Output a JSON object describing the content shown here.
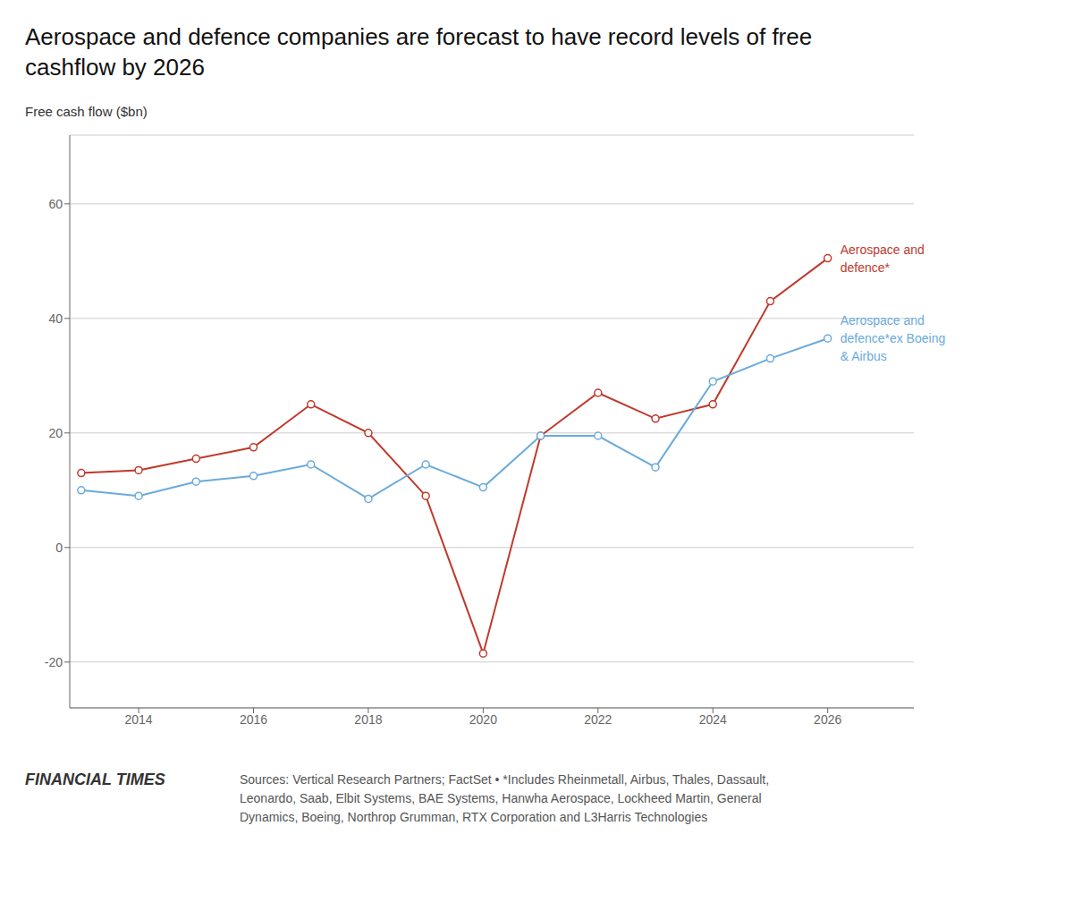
{
  "chart_data": {
    "type": "line",
    "title": "Aerospace and defence companies are forecast to have record levels of free\ncashflow by 2026",
    "y_label": "Free cash flow ($bn)",
    "x": [
      2013,
      2014,
      2015,
      2016,
      2017,
      2018,
      2019,
      2020,
      2021,
      2022,
      2023,
      2024,
      2025,
      2026
    ],
    "series": [
      {
        "name": "Aerospace and\ndefence*",
        "color": "#c0392b",
        "marker": "circle",
        "values": [
          13.0,
          13.5,
          15.5,
          17.5,
          25.0,
          20.0,
          9.0,
          -18.5,
          19.5,
          27.0,
          22.5,
          25.0,
          43.0,
          50.5
        ]
      },
      {
        "name": "Aerospace and\ndefence*ex Boeing\n& Airbus",
        "color": "#6aaadb",
        "marker": "circle",
        "values": [
          10.0,
          9.0,
          11.5,
          12.5,
          14.5,
          8.5,
          14.5,
          10.5,
          19.5,
          19.5,
          14.0,
          29.0,
          33.0,
          36.5
        ]
      }
    ],
    "xlim": [
      2012.8,
      2027.5
    ],
    "xticks": [
      2014,
      2016,
      2018,
      2020,
      2022,
      2024,
      2026
    ],
    "ylim": [
      -28,
      72
    ],
    "yticks": [
      -20,
      0,
      20,
      40,
      60
    ],
    "grid": true,
    "annotations": [
      "FINANCIAL TIMES",
      "Sources: Vertical Research Partners; FactSet • *Includes Rheinmetall, Airbus, Thales, Dassault,\nLeonardo, Saab, Elbit Systems, BAE Systems, Hanwha Aerospace, Lockheed Martin, General\nDynamics, Boeing, Northrop Grumman, RTX Corporation and L3Harris Technologies"
    ]
  }
}
